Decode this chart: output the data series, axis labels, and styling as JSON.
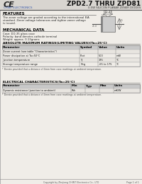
{
  "page_bg": "#e8e8e8",
  "content_bg": "#f0ede8",
  "header_logo": "CE",
  "header_company": "CHINT ELECTRONICS",
  "header_title": "ZPD2.7 THRU ZPD81",
  "header_subtitle": "0.5W SILICON PLANAR ZENER DIODES",
  "section_features": "FEATURES",
  "features_text": [
    "The zener voltage are graded according to the international EIA",
    "standard. Zener voltage tolerances and tighter zener voltage",
    "is issued."
  ],
  "section_mech": "MECHANICAL DATA",
  "mech_text": [
    "Case: DO-35 glass case",
    "Polarity: band denotes cathode terminal",
    "Weight: approx. 0.13grams"
  ],
  "section_abs": "ABSOLUTE MAXIMUM RATINGS(LIMITING VALUES)(Ta=25°C)",
  "abs_rows": [
    [
      "Zener current (see table \"Characteristics\")",
      "",
      "",
      ""
    ],
    [
      "Power dissipation at Ta=50°C",
      "Ptot",
      "500",
      "mW"
    ],
    [
      "Junction temperature",
      "Tj",
      "175",
      "°C"
    ],
    [
      "Storage temperature range",
      "Tstg",
      "-65 to 175",
      "°C"
    ]
  ],
  "abs_note": "* Derate provided that a distance of 4mm from case markings at ambient temperature.",
  "section_elec": "ELECTRICAL CHARACTERISTICS(Ta=25°C)",
  "elec_row": [
    "Dynamic resistance (junction to ambient)",
    "Rth",
    "",
    "",
    "mK/W"
  ],
  "elec_note": "* Derate provided that a distance of 4mm from case markings at ambient temperature.",
  "footer_text": "Copyright by Zhejiang CHINT Electronics Co., LTD",
  "footer_page": "Page 1 of 1"
}
